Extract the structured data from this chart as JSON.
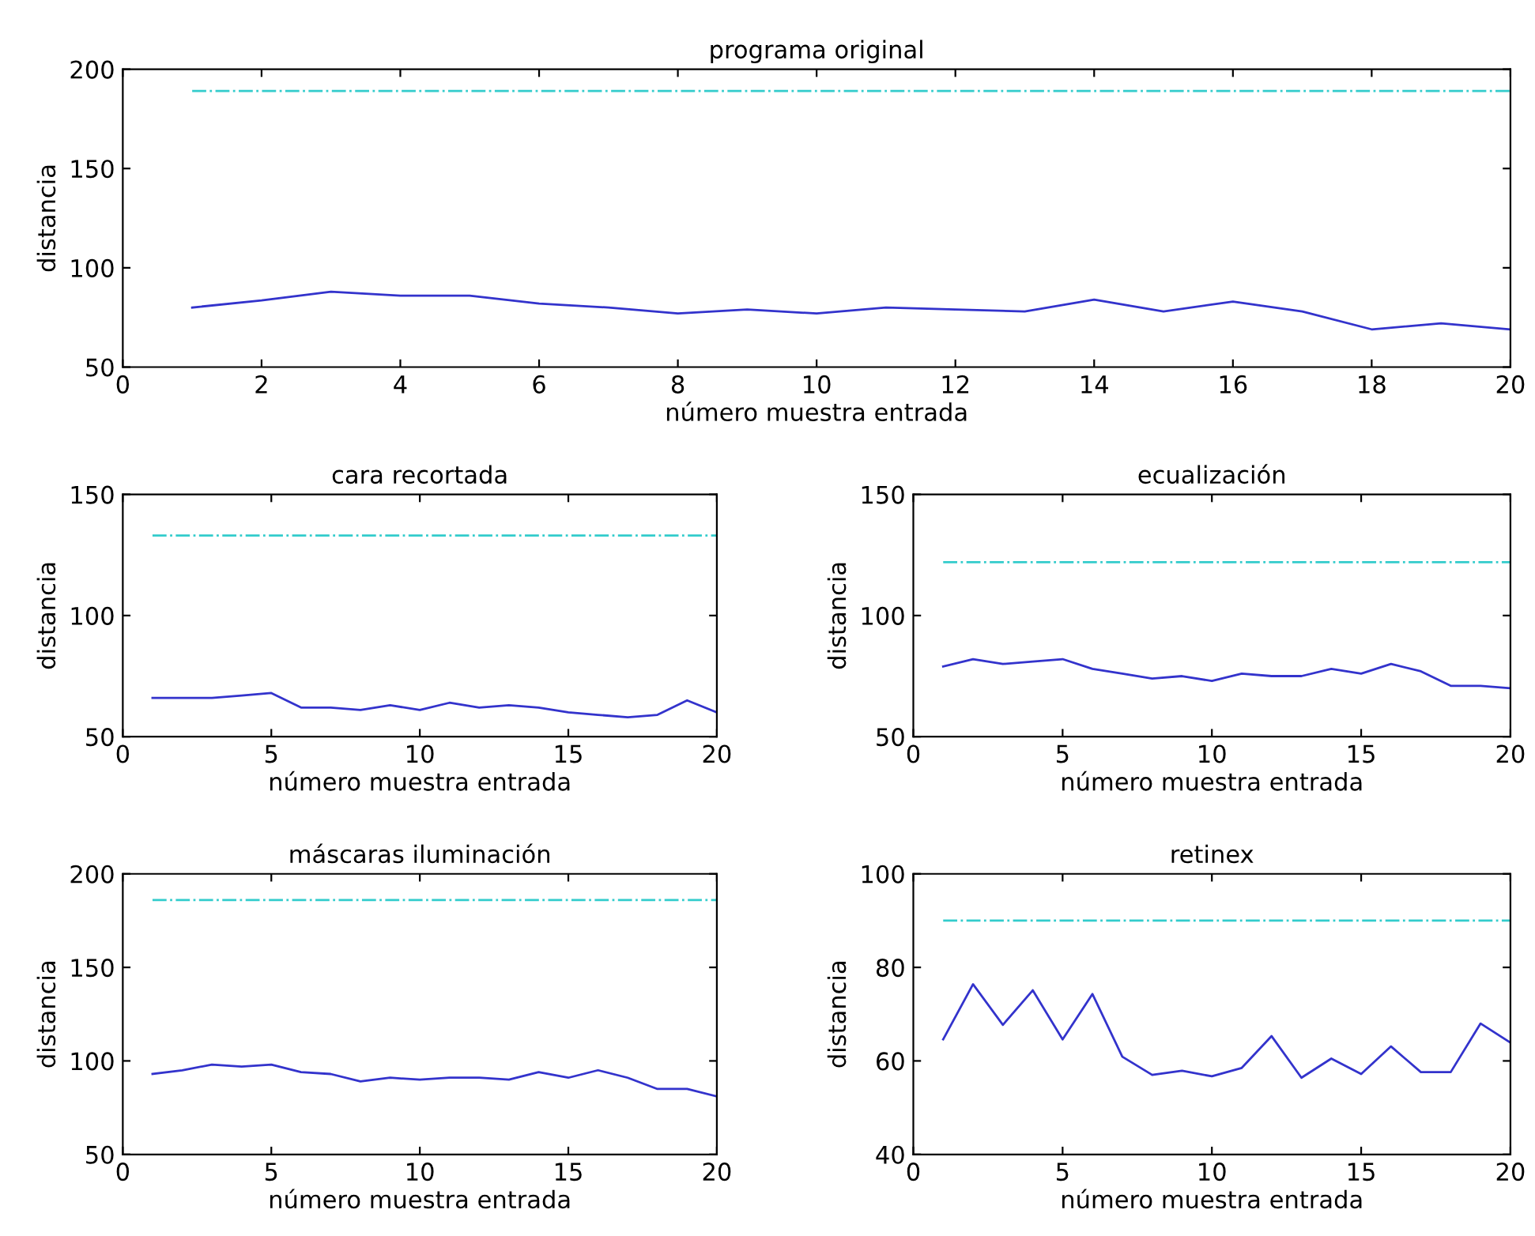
{
  "chart_data": [
    {
      "type": "line",
      "title": "programa original",
      "xlabel": "número muestra entrada",
      "ylabel": "distancia",
      "xlim": [
        0,
        20
      ],
      "xticks": [
        0,
        2,
        4,
        6,
        8,
        10,
        12,
        14,
        16,
        18,
        20
      ],
      "ylim": [
        50,
        200
      ],
      "yticks": [
        50,
        100,
        150,
        200
      ],
      "grid": false,
      "legend": false,
      "x": [
        1,
        2,
        3,
        4,
        5,
        6,
        7,
        8,
        9,
        10,
        11,
        12,
        13,
        14,
        15,
        16,
        17,
        18,
        19,
        20
      ],
      "series": [
        {
          "color": "#3333cc",
          "line_style": "solid",
          "values": [
            80,
            83.6,
            88,
            86,
            86,
            82,
            80,
            77,
            79,
            77,
            80,
            79,
            78,
            84,
            78,
            83,
            78,
            69,
            72,
            69
          ]
        },
        {
          "color": "#33cccc",
          "line_style": "dashdot",
          "values": [
            189,
            189,
            189,
            189,
            189,
            189,
            189,
            189,
            189,
            189,
            189,
            189,
            189,
            189,
            189,
            189,
            189,
            189,
            189,
            189
          ]
        }
      ]
    },
    {
      "type": "line",
      "title": "cara recortada",
      "xlabel": "número muestra entrada",
      "ylabel": "distancia",
      "xlim": [
        0,
        20
      ],
      "xticks": [
        0,
        5,
        10,
        15,
        20
      ],
      "ylim": [
        50,
        150
      ],
      "yticks": [
        50,
        100,
        150
      ],
      "grid": false,
      "legend": false,
      "x": [
        1,
        2,
        3,
        4,
        5,
        6,
        7,
        8,
        9,
        10,
        11,
        12,
        13,
        14,
        15,
        16,
        17,
        18,
        19,
        20
      ],
      "series": [
        {
          "color": "#3333cc",
          "line_style": "solid",
          "values": [
            66,
            66,
            66,
            67,
            68,
            62,
            62,
            61,
            63,
            61,
            64,
            62,
            63,
            62,
            60,
            59,
            58,
            59,
            65,
            60
          ]
        },
        {
          "color": "#33cccc",
          "line_style": "dashdot",
          "values": [
            133,
            133,
            133,
            133,
            133,
            133,
            133,
            133,
            133,
            133,
            133,
            133,
            133,
            133,
            133,
            133,
            133,
            133,
            133,
            133
          ]
        }
      ]
    },
    {
      "type": "line",
      "title": "ecualización",
      "xlabel": "número muestra entrada",
      "ylabel": "distancia",
      "xlim": [
        0,
        20
      ],
      "xticks": [
        0,
        5,
        10,
        15,
        20
      ],
      "ylim": [
        50,
        150
      ],
      "yticks": [
        50,
        100,
        150
      ],
      "grid": false,
      "legend": false,
      "x": [
        1,
        2,
        3,
        4,
        5,
        6,
        7,
        8,
        9,
        10,
        11,
        12,
        13,
        14,
        15,
        16,
        17,
        18,
        19,
        20
      ],
      "series": [
        {
          "color": "#3333cc",
          "line_style": "solid",
          "values": [
            79,
            82,
            80,
            81,
            82,
            78,
            76,
            74,
            75,
            73,
            76,
            75,
            75,
            78,
            76,
            80,
            77,
            71,
            71,
            70
          ]
        },
        {
          "color": "#33cccc",
          "line_style": "dashdot",
          "values": [
            122,
            122,
            122,
            122,
            122,
            122,
            122,
            122,
            122,
            122,
            122,
            122,
            122,
            122,
            122,
            122,
            122,
            122,
            122,
            122
          ]
        }
      ]
    },
    {
      "type": "line",
      "title": "máscaras iluminación",
      "xlabel": "número muestra entrada",
      "ylabel": "distancia",
      "xlim": [
        0,
        20
      ],
      "xticks": [
        0,
        5,
        10,
        15,
        20
      ],
      "ylim": [
        50,
        200
      ],
      "yticks": [
        50,
        100,
        150,
        200
      ],
      "grid": false,
      "legend": false,
      "x": [
        1,
        2,
        3,
        4,
        5,
        6,
        7,
        8,
        9,
        10,
        11,
        12,
        13,
        14,
        15,
        16,
        17,
        18,
        19,
        20
      ],
      "series": [
        {
          "color": "#3333cc",
          "line_style": "solid",
          "values": [
            93,
            95,
            98,
            97,
            98,
            94,
            93,
            89,
            91,
            90,
            91,
            91,
            90,
            94,
            91,
            95,
            91,
            85,
            85,
            81
          ]
        },
        {
          "color": "#33cccc",
          "line_style": "dashdot",
          "values": [
            186,
            186,
            186,
            186,
            186,
            186,
            186,
            186,
            186,
            186,
            186,
            186,
            186,
            186,
            186,
            186,
            186,
            186,
            186,
            186
          ]
        }
      ]
    },
    {
      "type": "line",
      "title": "retinex",
      "xlabel": "número muestra entrada",
      "ylabel": "distancia",
      "xlim": [
        0,
        20
      ],
      "xticks": [
        0,
        5,
        10,
        15,
        20
      ],
      "ylim": [
        40,
        100
      ],
      "yticks": [
        40,
        60,
        80,
        100
      ],
      "grid": false,
      "legend": false,
      "x": [
        1,
        2,
        3,
        4,
        5,
        6,
        7,
        8,
        9,
        10,
        11,
        12,
        13,
        14,
        15,
        16,
        17,
        18,
        19,
        20
      ],
      "series": [
        {
          "color": "#3333cc",
          "line_style": "solid",
          "values": [
            64.6,
            76.4,
            67.7,
            75.1,
            64.6,
            74.3,
            60.9,
            57,
            57.9,
            56.7,
            58.5,
            65.3,
            56.4,
            60.5,
            57.2,
            63.1,
            57.6,
            57.6,
            68,
            63.9
          ]
        },
        {
          "color": "#33cccc",
          "line_style": "dashdot",
          "values": [
            90,
            90,
            90,
            90,
            90,
            90,
            90,
            90,
            90,
            90,
            90,
            90,
            90,
            90,
            90,
            90,
            90,
            90,
            90,
            90
          ]
        }
      ]
    }
  ]
}
